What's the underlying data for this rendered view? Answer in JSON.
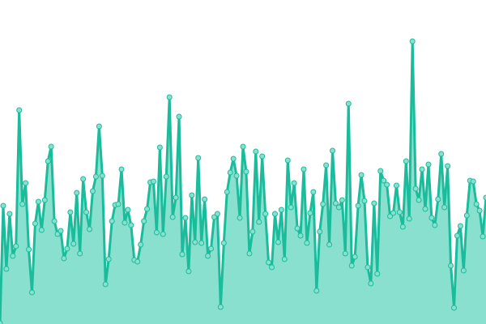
{
  "chart_data": {
    "type": "area",
    "title": "",
    "xlabel": "",
    "ylabel": "",
    "ylim": [
      0,
      400
    ],
    "grid": false,
    "legend": "none",
    "colors": {
      "line": "#1abc9c",
      "fill": "#8ae0cf",
      "marker_fill": "#8ae0cf",
      "marker_stroke": "#1abc9c"
    },
    "values": [
      1,
      146,
      68,
      136,
      84,
      96,
      264,
      148,
      174,
      92,
      39,
      124,
      151,
      116,
      153,
      201,
      219,
      127,
      111,
      115,
      81,
      93,
      138,
      99,
      162,
      87,
      179,
      138,
      117,
      164,
      182,
      244,
      183,
      49,
      80,
      127,
      147,
      148,
      191,
      125,
      141,
      122,
      79,
      77,
      98,
      127,
      142,
      175,
      176,
      113,
      218,
      111,
      182,
      280,
      132,
      156,
      256,
      86,
      131,
      65,
      159,
      101,
      205,
      100,
      154,
      84,
      93,
      132,
      136,
      21,
      100,
      163,
      187,
      204,
      183,
      131,
      219,
      188,
      87,
      114,
      213,
      126,
      207,
      136,
      76,
      70,
      136,
      101,
      141,
      80,
      202,
      144,
      174,
      118,
      109,
      191,
      100,
      137,
      163,
      41,
      114,
      148,
      196,
      98,
      214,
      149,
      144,
      153,
      87,
      272,
      72,
      83,
      146,
      184,
      152,
      70,
      50,
      149,
      62,
      189,
      177,
      172,
      133,
      137,
      171,
      138,
      120,
      201,
      130,
      349,
      167,
      153,
      191,
      142,
      197,
      131,
      122,
      154,
      210,
      144,
      195,
      72,
      20,
      109,
      121,
      66,
      134,
      177,
      176,
      148,
      140,
      108,
      156
    ]
  }
}
